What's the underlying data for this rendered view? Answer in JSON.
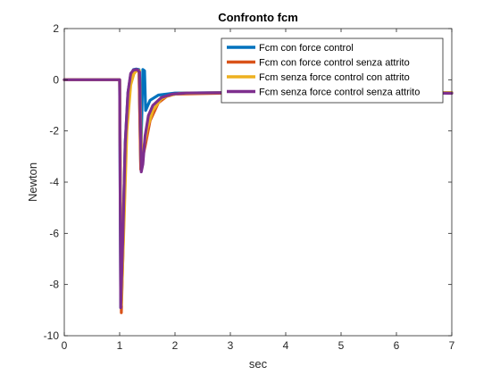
{
  "chart_data": {
    "type": "line",
    "title": "Confronto fcm",
    "xlabel": "sec",
    "ylabel": "Newton",
    "xlim": [
      0,
      7
    ],
    "ylim": [
      -10,
      2
    ],
    "xticks": [
      "0",
      "1",
      "2",
      "3",
      "4",
      "5",
      "6",
      "7"
    ],
    "yticks": [
      "2",
      "0",
      "-2",
      "-4",
      "-6",
      "-8",
      "-10"
    ],
    "grid": false,
    "legend_position": "top-right",
    "series": [
      {
        "name": "Fcm con force control",
        "color": "#0072BD",
        "points": [
          [
            0,
            0
          ],
          [
            0.98,
            0
          ],
          [
            1.0,
            0
          ],
          [
            1.02,
            -8.9
          ],
          [
            1.06,
            -6.0
          ],
          [
            1.1,
            -2.5
          ],
          [
            1.15,
            -0.5
          ],
          [
            1.2,
            0.2
          ],
          [
            1.25,
            0.4
          ],
          [
            1.3,
            0.42
          ],
          [
            1.35,
            0.4
          ],
          [
            1.38,
            -3.3
          ],
          [
            1.42,
            0.4
          ],
          [
            1.45,
            0.35
          ],
          [
            1.47,
            -1.2
          ],
          [
            1.55,
            -0.8
          ],
          [
            1.7,
            -0.6
          ],
          [
            2.0,
            -0.52
          ],
          [
            3,
            -0.5
          ],
          [
            4,
            -0.5
          ],
          [
            5,
            -0.5
          ],
          [
            6,
            -0.5
          ],
          [
            7,
            -0.5
          ]
        ]
      },
      {
        "name": "Fcm con force control senza attrito",
        "color": "#D95319",
        "points": [
          [
            0,
            0
          ],
          [
            0.98,
            0
          ],
          [
            1.0,
            0
          ],
          [
            1.03,
            -9.1
          ],
          [
            1.07,
            -6.0
          ],
          [
            1.12,
            -2.0
          ],
          [
            1.18,
            -0.3
          ],
          [
            1.24,
            0.2
          ],
          [
            1.3,
            0.35
          ],
          [
            1.35,
            0.35
          ],
          [
            1.38,
            -3.5
          ],
          [
            1.42,
            -3.0
          ],
          [
            1.46,
            -2.6
          ],
          [
            1.55,
            -1.6
          ],
          [
            1.7,
            -0.9
          ],
          [
            1.85,
            -0.65
          ],
          [
            2.0,
            -0.56
          ],
          [
            3,
            -0.52
          ],
          [
            4,
            -0.52
          ],
          [
            5,
            -0.52
          ],
          [
            6,
            -0.52
          ],
          [
            7,
            -0.52
          ]
        ]
      },
      {
        "name": "Fcm senza force control con attrito",
        "color": "#EDB120",
        "points": [
          [
            0,
            0
          ],
          [
            0.98,
            0
          ],
          [
            1.0,
            0
          ],
          [
            1.03,
            -8.8
          ],
          [
            1.08,
            -5.5
          ],
          [
            1.13,
            -2.0
          ],
          [
            1.2,
            -0.2
          ],
          [
            1.26,
            0.25
          ],
          [
            1.32,
            0.38
          ],
          [
            1.36,
            0.35
          ],
          [
            1.4,
            -3.4
          ],
          [
            1.44,
            -2.6
          ],
          [
            1.5,
            -1.9
          ],
          [
            1.6,
            -1.2
          ],
          [
            1.75,
            -0.75
          ],
          [
            1.9,
            -0.6
          ],
          [
            2.1,
            -0.53
          ],
          [
            3,
            -0.5
          ],
          [
            4,
            -0.5
          ],
          [
            5,
            -0.5
          ],
          [
            6,
            -0.5
          ],
          [
            7,
            -0.5
          ]
        ]
      },
      {
        "name": "Fcm senza force control senza attrito",
        "color": "#7E2F8E",
        "points": [
          [
            0,
            0
          ],
          [
            0.98,
            0
          ],
          [
            1.0,
            0
          ],
          [
            1.02,
            -8.9
          ],
          [
            1.06,
            -6.0
          ],
          [
            1.1,
            -2.5
          ],
          [
            1.15,
            -0.5
          ],
          [
            1.2,
            0.25
          ],
          [
            1.25,
            0.38
          ],
          [
            1.32,
            0.4
          ],
          [
            1.36,
            0.3
          ],
          [
            1.39,
            -3.6
          ],
          [
            1.42,
            -3.3
          ],
          [
            1.46,
            -2.2
          ],
          [
            1.52,
            -1.4
          ],
          [
            1.6,
            -1.0
          ],
          [
            1.75,
            -0.7
          ],
          [
            1.95,
            -0.56
          ],
          [
            2.2,
            -0.52
          ],
          [
            3,
            -0.5
          ],
          [
            4,
            -0.5
          ],
          [
            5,
            -0.5
          ],
          [
            6,
            -0.5
          ],
          [
            7,
            -0.53
          ]
        ]
      }
    ]
  }
}
